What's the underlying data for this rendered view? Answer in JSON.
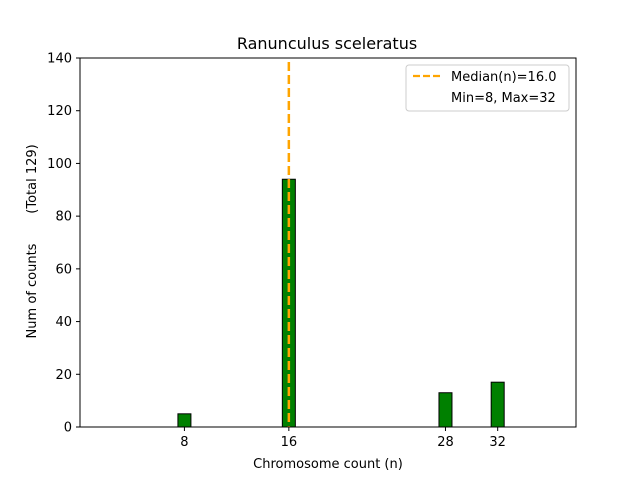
{
  "chart_data": {
    "type": "bar",
    "title": "Ranunculus sceleratus",
    "xlabel": "Chromosome count (n)",
    "ylabel": "Num of counts",
    "ylabel_secondary": "(Total 129)",
    "x": [
      8,
      16,
      28,
      32
    ],
    "values": [
      5,
      94,
      13,
      17
    ],
    "xticks": [
      8,
      16,
      28,
      32
    ],
    "yticks": [
      0,
      20,
      40,
      60,
      80,
      100,
      120,
      140
    ],
    "xlim": [
      0,
      38
    ],
    "ylim": [
      0,
      140
    ],
    "bar_color": "#008000",
    "bar_edge_color": "#000000",
    "median_line": {
      "x": 16.0,
      "color": "#FFA500",
      "style": "dashed"
    },
    "legend": {
      "placement": "top-right",
      "entries": [
        "Median(n)=16.0",
        "Min=8, Max=32"
      ]
    },
    "grid": false
  }
}
